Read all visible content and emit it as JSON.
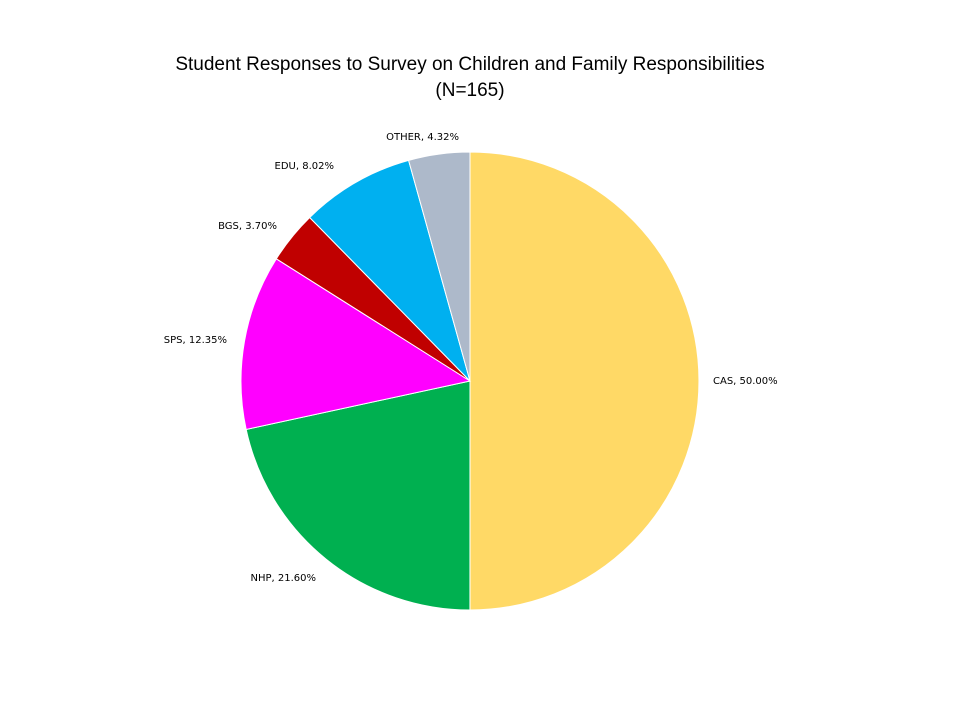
{
  "chart_data": {
    "type": "pie",
    "title": "Student Responses to Survey on Children and Family Responsibilities",
    "subtitle": "(N=165)",
    "slices": [
      {
        "category": "CAS",
        "value": 50.0,
        "label": "CAS, 50.00%",
        "color": "#FFD966"
      },
      {
        "category": "NHP",
        "value": 21.6,
        "label": "NHP, 21.60%",
        "color": "#00B050"
      },
      {
        "category": "SPS",
        "value": 12.35,
        "label": "SPS, 12.35%",
        "color": "#FF00FF"
      },
      {
        "category": "BGS",
        "value": 3.7,
        "label": "BGS, 3.70%",
        "color": "#C00000"
      },
      {
        "category": "EDU",
        "value": 8.02,
        "label": "EDU, 8.02%",
        "color": "#00B0F0"
      },
      {
        "category": "OTHER",
        "value": 4.32,
        "label": "OTHER, 4.32%",
        "color": "#ADB9CA"
      }
    ],
    "legend": "none"
  }
}
